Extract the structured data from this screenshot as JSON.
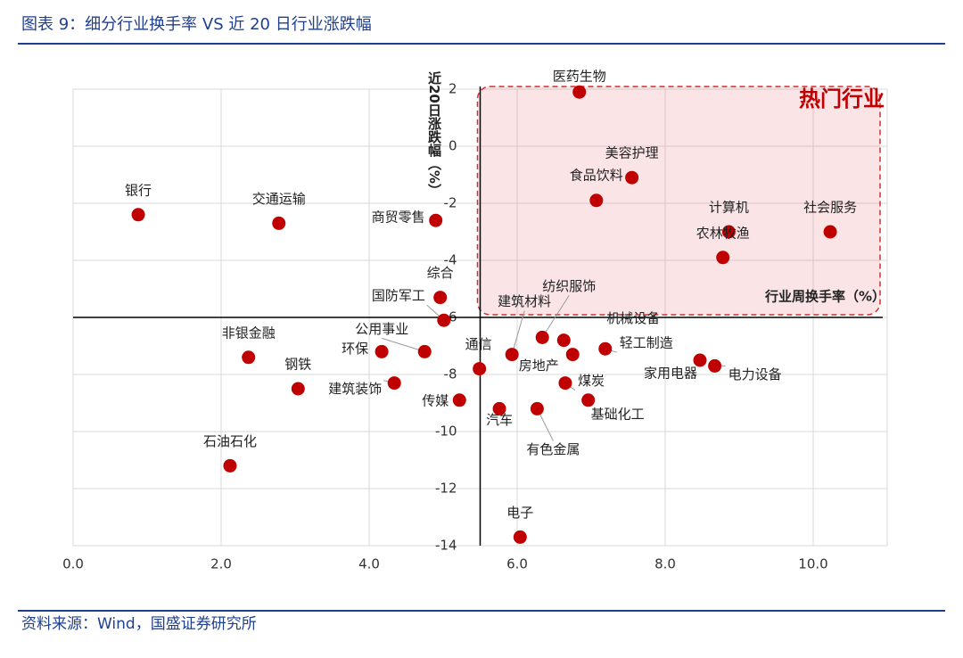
{
  "chart_data": {
    "type": "scatter",
    "title": "图表 9：细分行业换手率 VS 近 20 日行业涨跌幅",
    "source": "资料来源：Wind，国盛证券研究所",
    "x_label": "行业周换手率（%）",
    "y_label": "近20日涨跌幅（%）",
    "annotation": "热门行业",
    "color": "#c00000",
    "xlim": [
      0,
      11
    ],
    "ylim": [
      -14,
      2
    ],
    "xticks": [
      {
        "value": 0,
        "label": "0.0"
      },
      {
        "value": 2,
        "label": "2.0"
      },
      {
        "value": 4,
        "label": "4.0"
      },
      {
        "value": 6,
        "label": "6.0"
      },
      {
        "value": 8,
        "label": "8.0"
      },
      {
        "value": 10,
        "label": "10.0"
      }
    ],
    "yticks": [
      2,
      0,
      -2,
      -4,
      -6,
      -8,
      -10,
      -12,
      -14
    ],
    "yaxis_at": 5.5,
    "xaxis_at": -6,
    "grid": true,
    "labels": [
      "银行",
      "交通运输",
      "商贸零售",
      "医药生物",
      "美容护理",
      "食品饮料",
      "计算机",
      "社会服务",
      "农林牧渔",
      "综合",
      "国防军工",
      "建筑材料",
      "纺织服饰",
      "机械设备",
      "公用事业",
      "环保",
      "非银金融",
      "钢铁",
      "建筑装饰",
      "传媒",
      "通信",
      "房地产",
      "轻工制造",
      "煤炭",
      "基础化工",
      "汽车",
      "有色金属",
      "家用电器",
      "电力设备",
      "石油石化",
      "电子"
    ],
    "x": [
      0.88,
      2.78,
      4.9,
      6.84,
      7.55,
      7.07,
      8.86,
      10.23,
      8.78,
      4.96,
      5.01,
      5.93,
      6.34,
      6.63,
      4.75,
      4.17,
      2.37,
      3.04,
      4.34,
      5.22,
      5.49,
      6.75,
      7.19,
      6.65,
      6.96,
      5.76,
      6.27,
      8.47,
      8.67,
      2.12,
      6.04
    ],
    "y": [
      -2.4,
      -2.7,
      -2.6,
      1.9,
      -1.1,
      -1.9,
      -3.0,
      -3.0,
      -3.9,
      -5.3,
      -6.1,
      -7.3,
      -6.7,
      -6.8,
      -7.2,
      -7.2,
      -7.4,
      -8.5,
      -8.3,
      -8.9,
      -7.8,
      -7.3,
      -7.1,
      -8.3,
      -8.9,
      -9.2,
      -9.2,
      -7.5,
      -7.7,
      -11.2,
      -13.7
    ]
  }
}
